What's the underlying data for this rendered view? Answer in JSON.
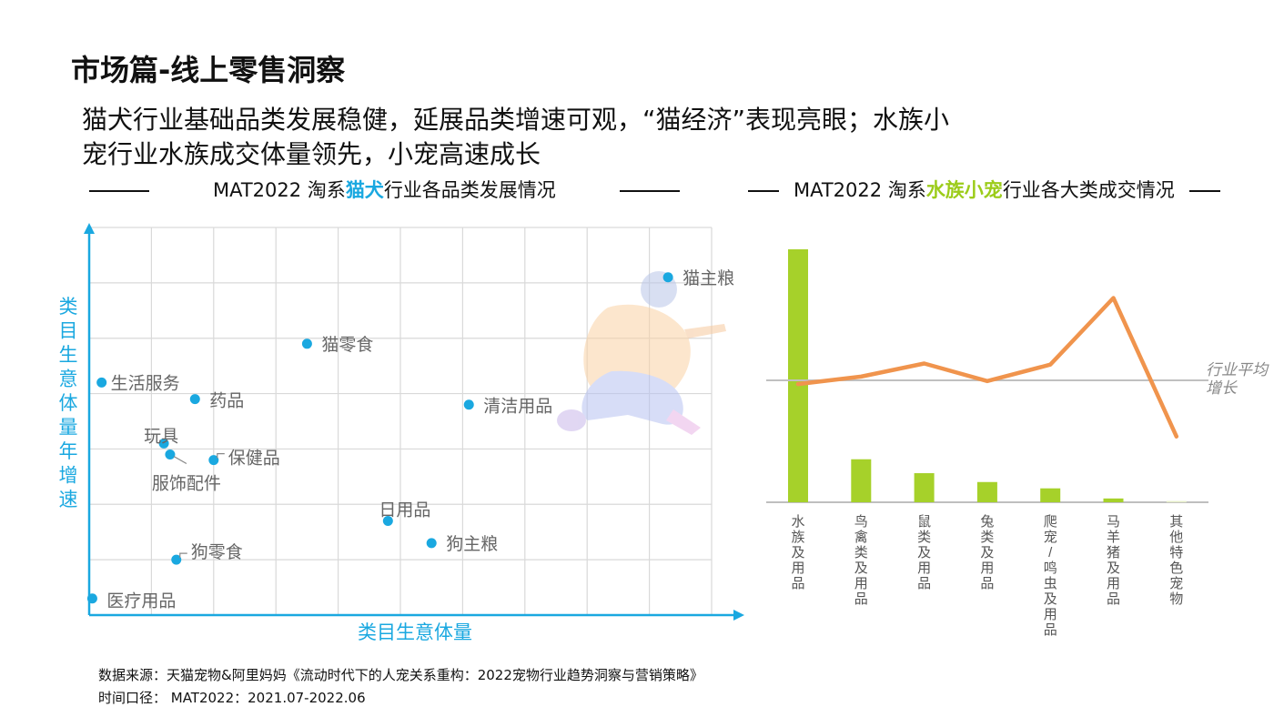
{
  "page": {
    "title": "市场篇-线上零售洞察",
    "subtitle_line1": "猫犬行业基础品类发展稳健，延展品类增速可观，“猫经济”表现亮眼；水族小",
    "subtitle_line2": "宠行业水族成交体量领先，小宠高速成长"
  },
  "left_heading": {
    "prefix": "MAT2022 淘系",
    "highlight": "猫犬",
    "suffix": "行业各品类发展情况"
  },
  "right_heading": {
    "prefix": "MAT2022 淘系",
    "highlight": "水族小宠",
    "suffix": "行业各大类成交情况"
  },
  "footnotes": {
    "source": "数据来源：天猫宠物&阿里妈妈《流动时代下的人宠关系重构：2022宠物行业趋势洞察与营销策略》",
    "period": "时间口径： MAT2022：2021.07-2022.06"
  },
  "colors": {
    "scatter_point": "#1aa8e0",
    "axis": "#1aa8e0",
    "grid": "#d9d9d9",
    "bar": "#a6d12a",
    "line": "#f0944d",
    "avg_line": "#c0c0c0",
    "label_gray": "#666666",
    "highlight_blue": "#1aa8e0",
    "highlight_green": "#9ccc1a"
  },
  "chart_data": [
    {
      "type": "scatter",
      "title": "MAT2022 淘系猫犬行业各品类发展情况",
      "xlabel": "类目生意体量",
      "ylabel": "类目生意体量年增速",
      "xlim": [
        0,
        10
      ],
      "ylim": [
        0,
        7
      ],
      "grid": true,
      "axis_ticks_labeled": false,
      "points": [
        {
          "name": "猫主粮",
          "x": 9.3,
          "y": 6.1
        },
        {
          "name": "猫零食",
          "x": 3.5,
          "y": 4.9
        },
        {
          "name": "生活服务",
          "x": 0.2,
          "y": 4.2
        },
        {
          "name": "药品",
          "x": 1.7,
          "y": 3.9
        },
        {
          "name": "清洁用品",
          "x": 6.1,
          "y": 3.8
        },
        {
          "name": "玩具",
          "x": 1.2,
          "y": 3.1
        },
        {
          "name": "服饰配件",
          "x": 1.3,
          "y": 2.9
        },
        {
          "name": "保健品",
          "x": 2.0,
          "y": 2.8
        },
        {
          "name": "日用品",
          "x": 4.8,
          "y": 1.7
        },
        {
          "name": "狗主粮",
          "x": 5.5,
          "y": 1.3
        },
        {
          "name": "狗零食",
          "x": 1.4,
          "y": 1.0
        },
        {
          "name": "医疗用品",
          "x": 0.05,
          "y": 0.3
        }
      ]
    },
    {
      "type": "bar",
      "title": "MAT2022 淘系水族小宠行业各大类成交情况",
      "categories": [
        "水族及用品",
        "鸟禽类及用品",
        "鼠类及用品",
        "兔类及用品",
        "爬宠/鸣虫及用品",
        "马羊猪及用品",
        "其他特色宠物"
      ],
      "series": [
        {
          "type": "bar",
          "values": [
            100,
            17,
            11.5,
            8,
            5.5,
            1.5,
            0.5
          ]
        },
        {
          "type": "line",
          "values": [
            -1,
            1,
            4.5,
            -0.2,
            4.2,
            22,
            -15
          ]
        }
      ],
      "reference_line": {
        "label": "行业平均增长",
        "value": 0
      },
      "bar_ylim": [
        0,
        100
      ],
      "line_ylim": [
        -35,
        35
      ],
      "axis_ticks_labeled": false
    }
  ]
}
